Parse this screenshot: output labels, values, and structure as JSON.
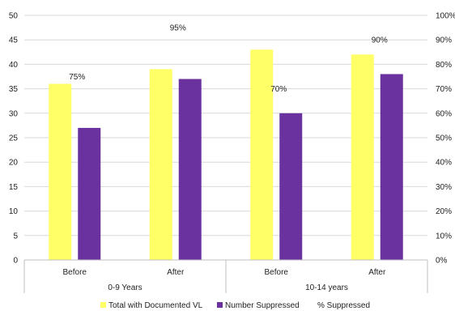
{
  "chart_data": {
    "type": "bar",
    "groups": [
      {
        "label": "0-9 Years",
        "categories": [
          "Before",
          "After"
        ]
      },
      {
        "label": "10-14 years",
        "categories": [
          "Before",
          "After"
        ]
      }
    ],
    "categories": [
      "Before",
      "After",
      "Before",
      "After"
    ],
    "series": [
      {
        "name": "Total with Documented VL",
        "values": [
          36,
          39,
          43,
          42
        ],
        "color": "#ffff66"
      },
      {
        "name": "Number Suppressed",
        "values": [
          27,
          37,
          30,
          38
        ],
        "color": "#6a329f"
      }
    ],
    "percent_series": {
      "name": "% Suppressed",
      "values": [
        75,
        95,
        70,
        90
      ],
      "labels": [
        "75%",
        "95%",
        "70%",
        "90%"
      ]
    },
    "y_left": {
      "min": 0,
      "max": 50,
      "ticks": [
        "0",
        "5",
        "10",
        "15",
        "20",
        "25",
        "30",
        "35",
        "40",
        "45",
        "50"
      ]
    },
    "y_right": {
      "min": 0,
      "max": 100,
      "ticks": [
        "0%",
        "10%",
        "20%",
        "30%",
        "40%",
        "50%",
        "60%",
        "70%",
        "80%",
        "90%",
        "100%"
      ]
    },
    "grid": true,
    "legend_position": "bottom"
  }
}
